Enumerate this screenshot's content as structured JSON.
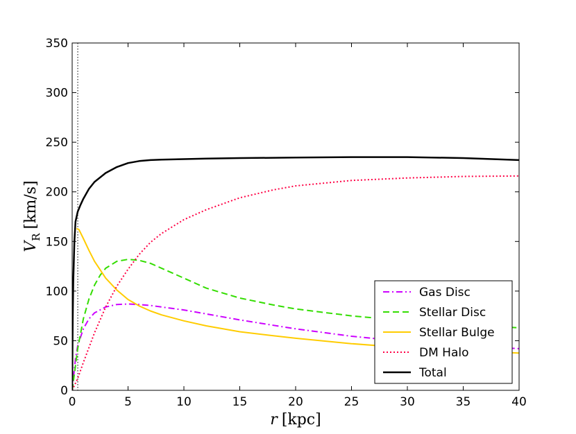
{
  "chart_data": {
    "type": "line",
    "xlabel": "r [kpc]",
    "ylabel": "V_R [km/s]",
    "xlim": [
      0,
      40
    ],
    "ylim": [
      0,
      350
    ],
    "xticks": [
      0,
      5,
      10,
      15,
      20,
      25,
      30,
      35,
      40
    ],
    "yticks": [
      0,
      50,
      100,
      150,
      200,
      250,
      300,
      350
    ],
    "grid": false,
    "legend_position": "lower-right",
    "vline_x": 0.5,
    "series": [
      {
        "name": "Gas Disc",
        "color": "#cc00ff",
        "style": "dashdot",
        "x": [
          0,
          0.3,
          0.5,
          1,
          1.5,
          2,
          3,
          4,
          5,
          6,
          7,
          8,
          10,
          12,
          15,
          18,
          20,
          25,
          30,
          35,
          40
        ],
        "y": [
          0,
          32,
          45,
          62,
          72,
          78,
          84,
          86.5,
          87,
          86.5,
          85.5,
          84,
          81,
          77,
          71,
          65.5,
          62,
          54.5,
          49,
          45,
          42
        ]
      },
      {
        "name": "Stellar Disc",
        "color": "#33dd00",
        "style": "dashed",
        "x": [
          0,
          0.3,
          0.5,
          1,
          1.5,
          2,
          2.5,
          3,
          4,
          5,
          6,
          7,
          8,
          10,
          12,
          15,
          18,
          20,
          25,
          30,
          35,
          40
        ],
        "y": [
          0,
          25,
          42,
          72,
          92,
          106,
          116,
          123,
          130,
          132,
          131,
          128,
          123,
          113,
          103,
          93,
          86,
          82,
          75,
          70,
          66,
          63
        ]
      },
      {
        "name": "Stellar Bulge",
        "color": "#ffcc00",
        "style": "solid",
        "x": [
          0.4,
          0.6,
          1,
          1.5,
          2,
          3,
          4,
          5,
          6,
          7,
          8,
          10,
          12,
          15,
          18,
          20,
          25,
          30,
          35,
          40
        ],
        "y": [
          163,
          162,
          153,
          141,
          130,
          113,
          101,
          91.5,
          85,
          80,
          76,
          70,
          65,
          59,
          55,
          52.5,
          47,
          42.8,
          40,
          37.5
        ]
      },
      {
        "name": "DM Halo",
        "color": "#ff0044",
        "style": "dotted",
        "x": [
          0,
          0.5,
          1,
          2,
          3,
          4,
          5,
          6,
          7,
          8,
          10,
          12,
          15,
          18,
          20,
          25,
          30,
          35,
          40
        ],
        "y": [
          0,
          12,
          28,
          58,
          84,
          105,
          122,
          137,
          149,
          158,
          172,
          182,
          194,
          202,
          206,
          211.5,
          214,
          215.5,
          216
        ]
      },
      {
        "name": "Total",
        "color": "#000000",
        "style": "solid",
        "x": [
          0,
          0.05,
          0.1,
          0.2,
          0.3,
          0.5,
          0.75,
          1,
          1.5,
          2,
          3,
          4,
          5,
          6,
          7,
          8,
          10,
          12,
          15,
          20,
          25,
          30,
          35,
          40
        ],
        "y": [
          0,
          72,
          110,
          150,
          170,
          180,
          187,
          193,
          203,
          210,
          219,
          225,
          229,
          231,
          232,
          232.5,
          233,
          233.5,
          234,
          234.5,
          235,
          235,
          234,
          232
        ]
      }
    ]
  }
}
